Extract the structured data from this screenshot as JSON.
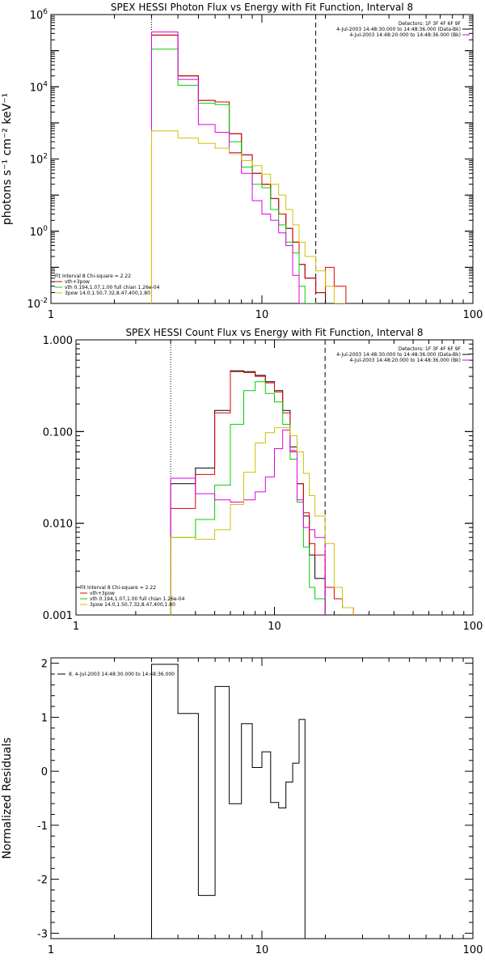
{
  "chart_data": [
    {
      "id": "photon",
      "type": "line",
      "title": "SPEX HESSI Photon Flux vs Energy with Fit Function, Interval 8",
      "ylabel": "photons s⁻¹ cm⁻² keV⁻¹",
      "xscale": "log",
      "yscale": "log",
      "xlim": [
        1,
        100
      ],
      "ylim": [
        0.01,
        1000000
      ],
      "xticks": [
        {
          "v": 1,
          "label": "1"
        },
        {
          "v": 10,
          "label": "10"
        },
        {
          "v": 100,
          "label": "100"
        }
      ],
      "yticks": [
        {
          "v": 0.01,
          "b": "10",
          "e": "-2"
        },
        {
          "v": 1,
          "b": "10",
          "e": "0"
        },
        {
          "v": 100,
          "b": "10",
          "e": "2"
        },
        {
          "v": 10000,
          "b": "10",
          "e": "4"
        },
        {
          "v": 1000000,
          "b": "10",
          "e": "6"
        }
      ],
      "vlines": [
        {
          "x": 3.0,
          "style": "dotted"
        },
        {
          "x": 18.0,
          "style": "dashed"
        }
      ],
      "edges": [
        3.0,
        4.0,
        5.0,
        6.0,
        7.0,
        8.0,
        9.0,
        10.0,
        11.0,
        12.0,
        13.0,
        14.0,
        15.0,
        16.0,
        18.0,
        20.0,
        22.0,
        25.0
      ],
      "series": [
        {
          "name": "vth+3pow",
          "color": "#000000",
          "values": [
            270000,
            20000,
            4200,
            3800,
            500,
            130,
            40,
            20,
            8,
            3,
            1.2,
            0.5,
            0.12,
            0.05,
            0.02,
            null,
            null
          ]
        },
        {
          "name": "vth+3pow",
          "color": "#e00000",
          "values": [
            270000,
            20000,
            4200,
            3800,
            500,
            130,
            40,
            20,
            8,
            3,
            1.2,
            0.5,
            0.12,
            0.05,
            0.02,
            0.1,
            0.03
          ]
        },
        {
          "name": "vth 0.194,1.07,1.00  full chian 1.26e-04",
          "color": "#00d000",
          "values": [
            110000,
            11000,
            3500,
            3200,
            300,
            60,
            20,
            16,
            4,
            1.5,
            0.5,
            0.25,
            0.03,
            0.01,
            null,
            null,
            null
          ]
        },
        {
          "name": "3pow 14.0,1.50,7.32,8.47,400,1.80",
          "color": "#e000e0",
          "values": [
            330000,
            16000,
            900,
            550,
            150,
            40,
            7,
            3,
            2,
            0.9,
            0.4,
            0.06,
            0.01,
            null,
            null,
            null,
            null
          ]
        },
        {
          "name": "",
          "color": "#d0c000",
          "values": [
            600,
            380,
            270,
            200,
            140,
            90,
            65,
            38,
            20,
            10,
            4,
            1.5,
            0.5,
            0.2,
            0.08,
            0.03,
            0.01
          ]
        }
      ],
      "legend_top_right": [
        "Detectors: 1F 3F 4F 6F 9F",
        "4-Jul-2003 14:48:30.000 to 14:48:36.000 (Data-Bk)",
        "4-Jul-2003 14:48:20.000 to 14:48:36.000 (Bk)"
      ],
      "legend_top_right_colors": [
        "",
        "#000000",
        "#e000e0"
      ],
      "legend_bottom_left": [
        "Fit Interval 8   Chi-square = 2.22",
        "vth+3pow",
        "vth 0.194,1.07,1.00  full chian 1.26e-04",
        "3pow 14.0,1.50,7.32,8.47,400,1.80"
      ],
      "legend_bottom_left_colors": [
        "",
        "#e00000",
        "#00d000",
        "#d0c000"
      ]
    },
    {
      "id": "count",
      "type": "line",
      "title": "SPEX HESSI Count Flux vs Energy with Fit Function, Interval 8",
      "ylabel": "",
      "xscale": "log",
      "yscale": "log",
      "xlim": [
        1,
        100
      ],
      "ylim": [
        0.001,
        1.0
      ],
      "xticks": [
        {
          "v": 1,
          "label": "1"
        },
        {
          "v": 10,
          "label": "10"
        },
        {
          "v": 100,
          "label": "100"
        }
      ],
      "yticks": [
        {
          "v": 0.001,
          "label": "0.001"
        },
        {
          "v": 0.01,
          "label": "0.010"
        },
        {
          "v": 0.1,
          "label": "0.100"
        },
        {
          "v": 1.0,
          "label": "1.000"
        }
      ],
      "vlines": [
        {
          "x": 3.0,
          "style": "dotted"
        },
        {
          "x": 18.0,
          "style": "dashed"
        }
      ],
      "edges": [
        3.0,
        4.0,
        5.0,
        6.0,
        7.0,
        8.0,
        9.0,
        10.0,
        11.0,
        12.0,
        13.0,
        14.0,
        15.0,
        16.0,
        18.0,
        20.0,
        22.0,
        25.0
      ],
      "series": [
        {
          "name": "vth+3pow",
          "color": "#000000",
          "values": [
            0.027,
            0.04,
            0.17,
            0.46,
            0.45,
            0.41,
            0.35,
            0.28,
            0.17,
            0.068,
            0.027,
            0.012,
            0.0045,
            0.0025,
            0.001,
            null,
            null
          ]
        },
        {
          "name": "vth+3pow",
          "color": "#e00000",
          "values": [
            0.0145,
            0.034,
            0.16,
            0.45,
            0.44,
            0.4,
            0.34,
            0.27,
            0.16,
            0.062,
            0.027,
            0.013,
            0.006,
            0.0045,
            0.002,
            0.0015,
            0.0012
          ]
        },
        {
          "name": "vth 0.194,1.07,1.00  full chian 1.26e-04",
          "color": "#00d000",
          "values": [
            0.007,
            0.011,
            0.026,
            0.12,
            0.28,
            0.35,
            0.26,
            0.21,
            0.12,
            0.05,
            0.017,
            0.0055,
            0.002,
            0.0015,
            null,
            null,
            null
          ]
        },
        {
          "name": "3pow 14.0,1.50,7.32,8.47,400,1.80",
          "color": "#e000e0",
          "values": [
            0.031,
            0.021,
            0.018,
            0.017,
            0.018,
            0.022,
            0.032,
            0.065,
            0.104,
            0.06,
            0.018,
            0.009,
            0.0085,
            0.007,
            null,
            null,
            null
          ]
        },
        {
          "name": "",
          "color": "#d0c000",
          "values": [
            0.007,
            0.0067,
            0.0085,
            0.016,
            0.036,
            0.075,
            0.097,
            0.11,
            0.11,
            0.09,
            0.06,
            0.035,
            0.02,
            0.012,
            0.006,
            0.002,
            0.0012
          ]
        }
      ],
      "legend_top_right": [
        "Detectors: 1F 3F 4F 6F 9F",
        "4-Jul-2003 14:48:30.000 to 14:48:36.000 (Data-Bk)",
        "4-Jul-2003 14:48:20.000 to 14:48:36.000 (Bk)"
      ],
      "legend_top_right_colors": [
        "",
        "#000000",
        "#e000e0"
      ],
      "legend_bottom_left": [
        "Fit Interval 8   Chi-square = 2.22",
        "vth+3pow",
        "vth 0.194,1.07,1.00  full chian 1.26e-04",
        "3pow 14.0,1.50,7.32,8.47,400,1.80"
      ],
      "legend_bottom_left_colors": [
        "",
        "#e00000",
        "#00d000",
        "#d0c000"
      ]
    },
    {
      "id": "resid",
      "type": "line",
      "title": "",
      "ylabel": "Normalized Residuals",
      "xscale": "log",
      "yscale": "linear",
      "xlim": [
        1,
        100
      ],
      "ylim": [
        -3.1,
        2.1
      ],
      "xticks": [
        {
          "v": 1,
          "label": "1"
        },
        {
          "v": 10,
          "label": "10"
        },
        {
          "v": 100,
          "label": "100"
        }
      ],
      "yticks": [
        {
          "v": -3,
          "label": "-3"
        },
        {
          "v": -2,
          "label": "-2"
        },
        {
          "v": -1,
          "label": "-1"
        },
        {
          "v": 0,
          "label": "0"
        },
        {
          "v": 1,
          "label": "1"
        },
        {
          "v": 2,
          "label": "2"
        }
      ],
      "vlines": [],
      "edges": [
        3.0,
        4.0,
        5.0,
        6.0,
        7.0,
        8.0,
        9.0,
        10.0,
        11.0,
        12.0,
        13.0,
        14.0,
        15.0,
        16.0,
        18.0
      ],
      "closed": true,
      "series": [
        {
          "name": "8.  4-Jul-2003 14:48:30.000 to 14:48:36.000",
          "color": "#000000",
          "values": [
            1.98,
            1.07,
            -2.3,
            1.57,
            -0.6,
            0.88,
            0.07,
            0.36,
            -0.58,
            -0.68,
            -0.2,
            0.15,
            0.96,
            null
          ]
        }
      ],
      "legend_top_left": [
        "8.  4-Jul-2003 14:48:30.000 to 14:48:36.000"
      ]
    }
  ]
}
